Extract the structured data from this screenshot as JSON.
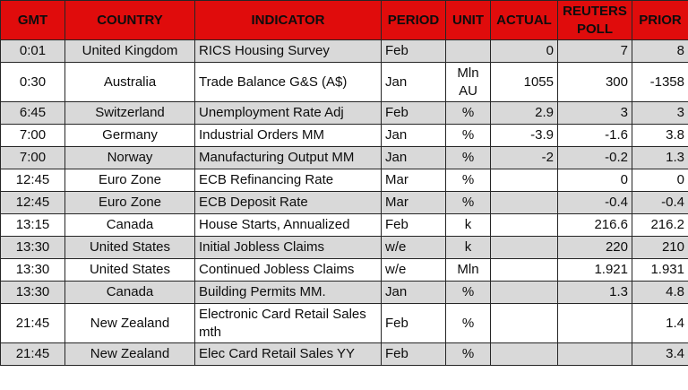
{
  "colors": {
    "header_bg": "#e00c0c",
    "header_text": "#ffffff",
    "row_gray": "#d9d9d9",
    "row_white": "#ffffff",
    "border": "#262626",
    "header_divider": "#5a1414"
  },
  "table": {
    "columns": [
      {
        "key": "gmt",
        "label": "GMT"
      },
      {
        "key": "country",
        "label": "COUNTRY"
      },
      {
        "key": "indicator",
        "label": "INDICATOR"
      },
      {
        "key": "period",
        "label": "PERIOD"
      },
      {
        "key": "unit",
        "label": "UNIT"
      },
      {
        "key": "actual",
        "label": "ACTUAL"
      },
      {
        "key": "poll",
        "label": "REUTERS POLL"
      },
      {
        "key": "prior",
        "label": "PRIOR"
      }
    ],
    "rows": [
      {
        "gmt": "0:01",
        "country": "United Kingdom",
        "indicator": "RICS Housing Survey",
        "period": "Feb",
        "unit": "",
        "actual": "0",
        "poll": "7",
        "prior": "8"
      },
      {
        "gmt": "0:30",
        "country": "Australia",
        "indicator": "Trade Balance G&S (A$)",
        "period": "Jan",
        "unit": "Mln\nAU",
        "actual": "1055",
        "poll": "300",
        "prior": "-1358"
      },
      {
        "gmt": "6:45",
        "country": "Switzerland",
        "indicator": "Unemployment Rate Adj",
        "period": "Feb",
        "unit": "%",
        "actual": "2.9",
        "poll": "3",
        "prior": "3"
      },
      {
        "gmt": "7:00",
        "country": "Germany",
        "indicator": "Industrial Orders MM",
        "period": "Jan",
        "unit": "%",
        "actual": "-3.9",
        "poll": "-1.6",
        "prior": "3.8"
      },
      {
        "gmt": "7:00",
        "country": "Norway",
        "indicator": "Manufacturing Output MM",
        "period": "Jan",
        "unit": "%",
        "actual": "-2",
        "poll": "-0.2",
        "prior": "1.3"
      },
      {
        "gmt": "12:45",
        "country": "Euro Zone",
        "indicator": "ECB Refinancing Rate",
        "period": "Mar",
        "unit": "%",
        "actual": "",
        "poll": "0",
        "prior": "0"
      },
      {
        "gmt": "12:45",
        "country": "Euro Zone",
        "indicator": "ECB Deposit Rate",
        "period": "Mar",
        "unit": "%",
        "actual": "",
        "poll": "-0.4",
        "prior": "-0.4"
      },
      {
        "gmt": "13:15",
        "country": "Canada",
        "indicator": "House Starts, Annualized",
        "period": "Feb",
        "unit": "k",
        "actual": "",
        "poll": "216.6",
        "prior": "216.2"
      },
      {
        "gmt": "13:30",
        "country": "United States",
        "indicator": "Initial Jobless Claims",
        "period": "w/e",
        "unit": "k",
        "actual": "",
        "poll": "220",
        "prior": "210"
      },
      {
        "gmt": "13:30",
        "country": "United States",
        "indicator": "Continued Jobless Claims",
        "period": "w/e",
        "unit": "Mln",
        "actual": "",
        "poll": "1.921",
        "prior": "1.931"
      },
      {
        "gmt": "13:30",
        "country": "Canada",
        "indicator": "Building Permits MM.",
        "period": "Jan",
        "unit": "%",
        "actual": "",
        "poll": "1.3",
        "prior": "4.8"
      },
      {
        "gmt": "21:45",
        "country": "New Zealand",
        "indicator": "Electronic Card Retail Sales mth",
        "period": "Feb",
        "unit": "%",
        "actual": "",
        "poll": "",
        "prior": "1.4"
      },
      {
        "gmt": "21:45",
        "country": "New Zealand",
        "indicator": "Elec Card Retail Sales YY",
        "period": "Feb",
        "unit": "%",
        "actual": "",
        "poll": "",
        "prior": "3.4"
      }
    ]
  }
}
